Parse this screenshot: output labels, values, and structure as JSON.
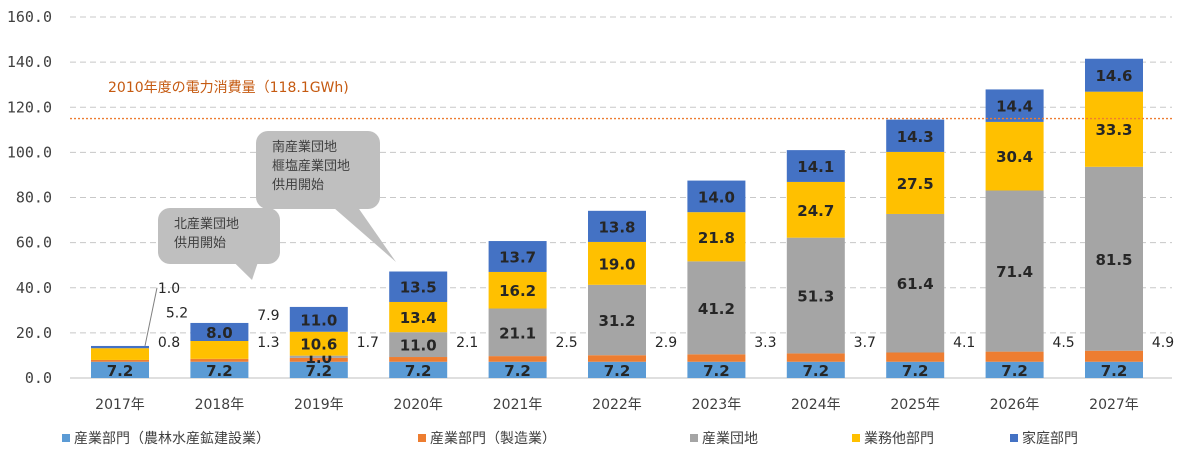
{
  "chart_data": {
    "type": "bar",
    "stacked": true,
    "categories": [
      "2017年",
      "2018年",
      "2019年",
      "2020年",
      "2021年",
      "2022年",
      "2023年",
      "2024年",
      "2025年",
      "2026年",
      "2027年"
    ],
    "ylim": [
      0,
      160
    ],
    "yticks": [
      "0.0",
      "20.0",
      "40.0",
      "60.0",
      "80.0",
      "100.0",
      "120.0",
      "140.0",
      "160.0"
    ],
    "grid": true,
    "legend_position": "bottom",
    "series": [
      {
        "name": "産業部門（農林水産鉱建設業）",
        "color": "#5b9bd5",
        "values": [
          7.2,
          7.2,
          7.2,
          7.2,
          7.2,
          7.2,
          7.2,
          7.2,
          7.2,
          7.2,
          7.2
        ]
      },
      {
        "name": "産業部門（製造業）",
        "color": "#ed7d31",
        "values": [
          0.8,
          1.3,
          1.7,
          2.1,
          2.5,
          2.9,
          3.3,
          3.7,
          4.1,
          4.5,
          4.9
        ]
      },
      {
        "name": "産業団地",
        "color": "#a5a5a5",
        "values": [
          0,
          0,
          1.0,
          11.0,
          21.1,
          31.2,
          41.2,
          51.3,
          61.4,
          71.4,
          81.5
        ]
      },
      {
        "name": "業務他部門",
        "color": "#ffc000",
        "values": [
          5.2,
          7.9,
          10.6,
          13.4,
          16.2,
          19.0,
          21.8,
          24.7,
          27.5,
          30.4,
          33.3
        ]
      },
      {
        "name": "家庭部門",
        "color": "#4472c4",
        "values": [
          1.0,
          8.0,
          11.0,
          13.5,
          13.7,
          13.8,
          14.0,
          14.1,
          14.3,
          14.4,
          14.6
        ]
      }
    ],
    "reference_line": {
      "value": 118.1,
      "label": "2010年度の電力消費量（118.1GWh)",
      "color": "#ed7d31"
    },
    "annotations": [
      {
        "category": "2018年",
        "lines": [
          "北産業団地",
          "供用開始"
        ]
      },
      {
        "category": "2020年",
        "lines": [
          "南産業団地",
          "榧塩産業団地",
          "供用開始"
        ]
      }
    ]
  }
}
